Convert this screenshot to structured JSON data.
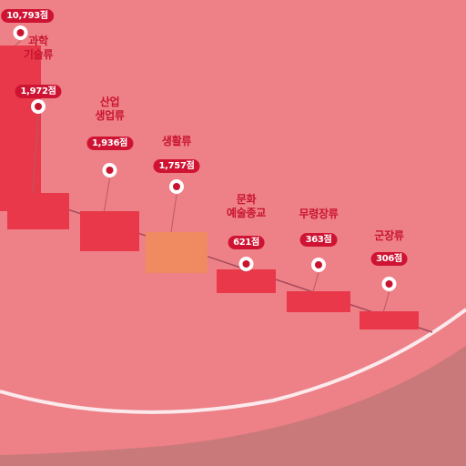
{
  "colors": {
    "background": "#d98a8b",
    "poster": "#ee7f84",
    "bar_main": "#e8384a",
    "bar_accent": "#f08a60",
    "label_red": "#c8142e",
    "pill_red": "#cf1433",
    "ring": "#fbe9ec"
  },
  "chart_data": {
    "type": "bar",
    "unit": "점",
    "categories": [
      {
        "name": "",
        "value_label": "10,793점",
        "value": 10793,
        "color": "#e8384a"
      },
      {
        "name": "과학\n기술류",
        "value_label": "1,972점",
        "value": 1972,
        "color": "#e8384a"
      },
      {
        "name": "산업\n생업류",
        "value_label": "1,936점",
        "value": 1936,
        "color": "#e8384a"
      },
      {
        "name": "생활류",
        "value_label": "1,757점",
        "value": 1757,
        "color": "#f08a60"
      },
      {
        "name": "문화\n예술종교",
        "value_label": "621점",
        "value": 621,
        "color": "#e8384a"
      },
      {
        "name": "무령장류",
        "value_label": "363점",
        "value": 363,
        "color": "#e8384a"
      },
      {
        "name": "군장류",
        "value_label": "306점",
        "value": 306,
        "color": "#e8384a"
      }
    ]
  }
}
